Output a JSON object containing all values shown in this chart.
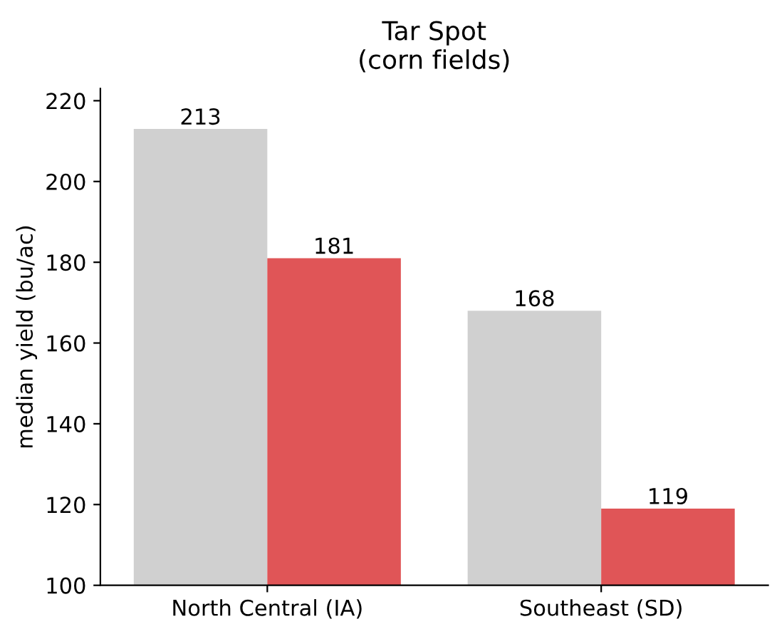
{
  "chart_data": {
    "type": "bar",
    "title": "Tar Spot\n(corn fields)",
    "ylabel": "median yield (bu/ac)",
    "categories": [
      "North Central (IA)",
      "Southeast (SD)"
    ],
    "series": [
      {
        "color": "#d0d0d0",
        "values": [
          213,
          168
        ]
      },
      {
        "color": "#e05557",
        "values": [
          181,
          119
        ]
      }
    ],
    "ylim": [
      100,
      223
    ],
    "yticks": [
      100,
      120,
      140,
      160,
      180,
      200,
      220
    ],
    "grid": false,
    "data_labels": true,
    "legend": false
  }
}
